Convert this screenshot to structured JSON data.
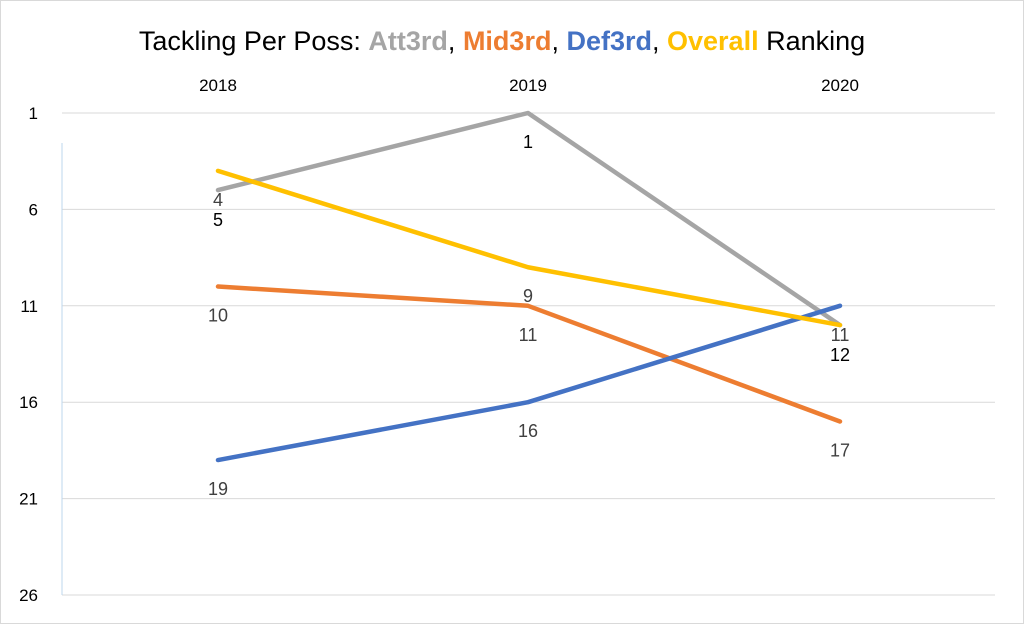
{
  "chart_data": {
    "type": "line",
    "title": {
      "prefix": "Tackling Per Poss: ",
      "sep1": ", ",
      "sep2": ", ",
      "sep3": ", ",
      "suffix": " Ranking"
    },
    "x": [
      "2018",
      "2019",
      "2020"
    ],
    "y_ticks": [
      "1",
      "6",
      "11",
      "16",
      "21",
      "26"
    ],
    "ylim": [
      1,
      26
    ],
    "y_inverted": true,
    "grid": true,
    "series": [
      {
        "name": "Att3rd",
        "color": "#A5A5A5",
        "values": [
          5,
          1,
          12
        ],
        "labels": [
          "5",
          "1",
          "12"
        ]
      },
      {
        "name": "Mid3rd",
        "color": "#ED7D31",
        "values": [
          10,
          11,
          17
        ],
        "labels": [
          "10",
          "11",
          "17"
        ]
      },
      {
        "name": "Def3rd",
        "color": "#4472C4",
        "values": [
          19,
          16,
          11
        ],
        "labels": [
          "19",
          "16",
          "11"
        ]
      },
      {
        "name": "Overall",
        "color": "#FFC000",
        "values": [
          4,
          9,
          12
        ],
        "labels": [
          "4",
          "9",
          ""
        ]
      }
    ]
  }
}
